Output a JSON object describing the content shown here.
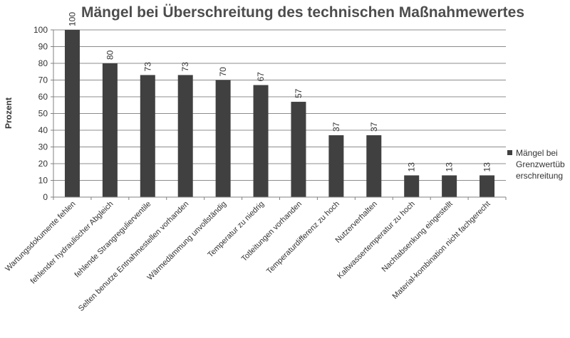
{
  "chart_data": {
    "type": "bar",
    "title": "Mängel bei Überschreitung des technischen Maßnahmewertes",
    "ylabel": "Prozent",
    "xlabel": "",
    "ylim": [
      0,
      100
    ],
    "yticks": [
      0,
      10,
      20,
      30,
      40,
      50,
      60,
      70,
      80,
      90,
      100
    ],
    "grid": true,
    "legend_position": "right",
    "bar_color": "#404040",
    "categories": [
      "Wartungsdokumente fehlen",
      "fehlender hydraulischer Abgleich",
      "fehlende Strangregulierventile",
      "Selten benutze Entnahmestellen vorhanden",
      "Wärmedämmung unvollständig",
      "Temperatur zu niedrig",
      "Totleitungen vorhanden",
      "Temperaturdifferenz zu hoch",
      "Nutzerverhalten",
      "Kaltwassertemperatur zu hoch",
      "Nachtabsenkung eingestellt",
      "Material-kombination nicht fachgerecht"
    ],
    "series": [
      {
        "name": "Mängel bei Grenzwertüb erschreitung",
        "values": [
          100,
          80,
          73,
          73,
          70,
          67,
          57,
          37,
          37,
          13,
          13,
          13
        ]
      }
    ]
  }
}
